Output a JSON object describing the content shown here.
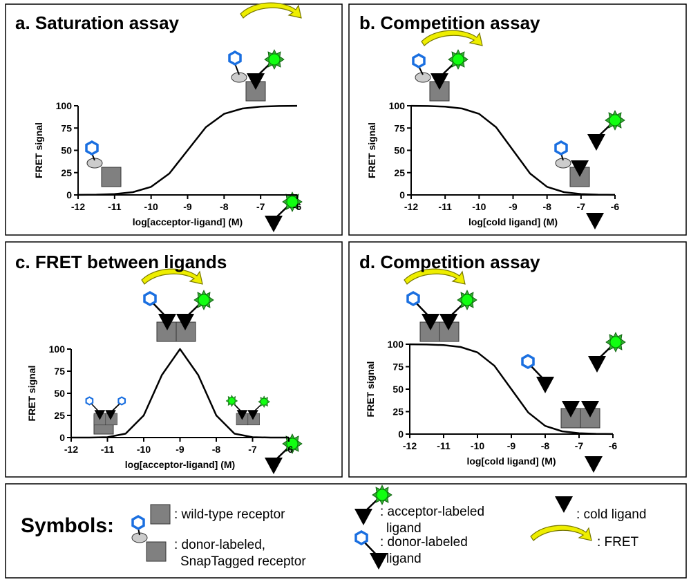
{
  "chart_data": [
    {
      "type": "line",
      "title": "a. Saturation assay",
      "x_label": "log[acceptor-ligand] (M)",
      "y_label": "FRET signal",
      "x": [
        -12,
        -11.5,
        -11,
        -10.5,
        -10,
        -9.5,
        -9,
        -8.5,
        -8,
        -7.5,
        -7,
        -6.5,
        -6
      ],
      "values": [
        0.1,
        0.3,
        1.0,
        3.1,
        9.1,
        24.0,
        50,
        76.0,
        90.9,
        96.9,
        99.0,
        99.7,
        99.9
      ],
      "color": "#000000",
      "xlim": [
        -12,
        -6
      ],
      "ylim": [
        0,
        100
      ],
      "xticks": [
        -12,
        -11,
        -10,
        -9,
        -8,
        -7,
        -6
      ],
      "yticks": [
        0,
        25,
        50,
        75,
        100
      ]
    },
    {
      "type": "line",
      "title": "b. Competition assay",
      "x_label": "log[cold ligand] (M)",
      "y_label": "FRET signal",
      "x": [
        -12,
        -11.5,
        -11,
        -10.5,
        -10,
        -9.5,
        -9,
        -8.5,
        -8,
        -7.5,
        -7,
        -6.5,
        -6
      ],
      "values": [
        99.9,
        99.7,
        99.0,
        96.9,
        90.9,
        76.0,
        50,
        24.0,
        9.1,
        3.1,
        1.0,
        0.3,
        0.1
      ],
      "color": "#000000",
      "xlim": [
        -12,
        -6
      ],
      "ylim": [
        0,
        100
      ],
      "xticks": [
        -12,
        -11,
        -10,
        -9,
        -8,
        -7,
        -6
      ],
      "yticks": [
        0,
        25,
        50,
        75,
        100
      ]
    },
    {
      "type": "line",
      "title": "c. FRET between ligands",
      "x_label": "log[acceptor-ligand] (M)",
      "y_label": "FRET signal",
      "x": [
        -12,
        -11.5,
        -11,
        -10.5,
        -10,
        -9.5,
        -9,
        -8.5,
        -8,
        -7.5,
        -7,
        -6.5,
        -6
      ],
      "values": [
        0,
        0,
        0.4,
        4.4,
        25,
        70.7,
        100,
        70.7,
        25,
        4.4,
        0.4,
        0,
        0
      ],
      "color": "#000000",
      "xlim": [
        -12,
        -6
      ],
      "ylim": [
        0,
        100
      ],
      "xticks": [
        -12,
        -11,
        -10,
        -9,
        -8,
        -7,
        -6
      ],
      "yticks": [
        0,
        25,
        50,
        75,
        100
      ]
    },
    {
      "type": "line",
      "title": "d. Competition assay",
      "x_label": "log[cold ligand] (M)",
      "y_label": "FRET signal",
      "x": [
        -12,
        -11.5,
        -11,
        -10.5,
        -10,
        -9.5,
        -9,
        -8.5,
        -8,
        -7.5,
        -7,
        -6.5,
        -6
      ],
      "values": [
        99.9,
        99.7,
        99.0,
        96.9,
        90.9,
        76.0,
        50,
        24.0,
        9.1,
        3.1,
        1.0,
        0.3,
        0.1
      ],
      "color": "#000000",
      "xlim": [
        -12,
        -6
      ],
      "ylim": [
        0,
        100
      ],
      "xticks": [
        -12,
        -11,
        -10,
        -9,
        -8,
        -7,
        -6
      ],
      "yticks": [
        0,
        25,
        50,
        75,
        100
      ]
    }
  ],
  "symbols": {
    "title": "Symbols:",
    "items": [
      {
        "lines": [
          ": wild-type receptor"
        ]
      },
      {
        "lines": [
          ": donor-labeled,",
          "SnapTagged receptor"
        ]
      },
      {
        "lines": [
          ": acceptor-labeled",
          "ligand"
        ]
      },
      {
        "lines": [
          ": donor-labeled",
          "ligand"
        ]
      },
      {
        "lines": [
          ": cold ligand"
        ]
      },
      {
        "lines": [
          ": FRET"
        ]
      }
    ]
  }
}
